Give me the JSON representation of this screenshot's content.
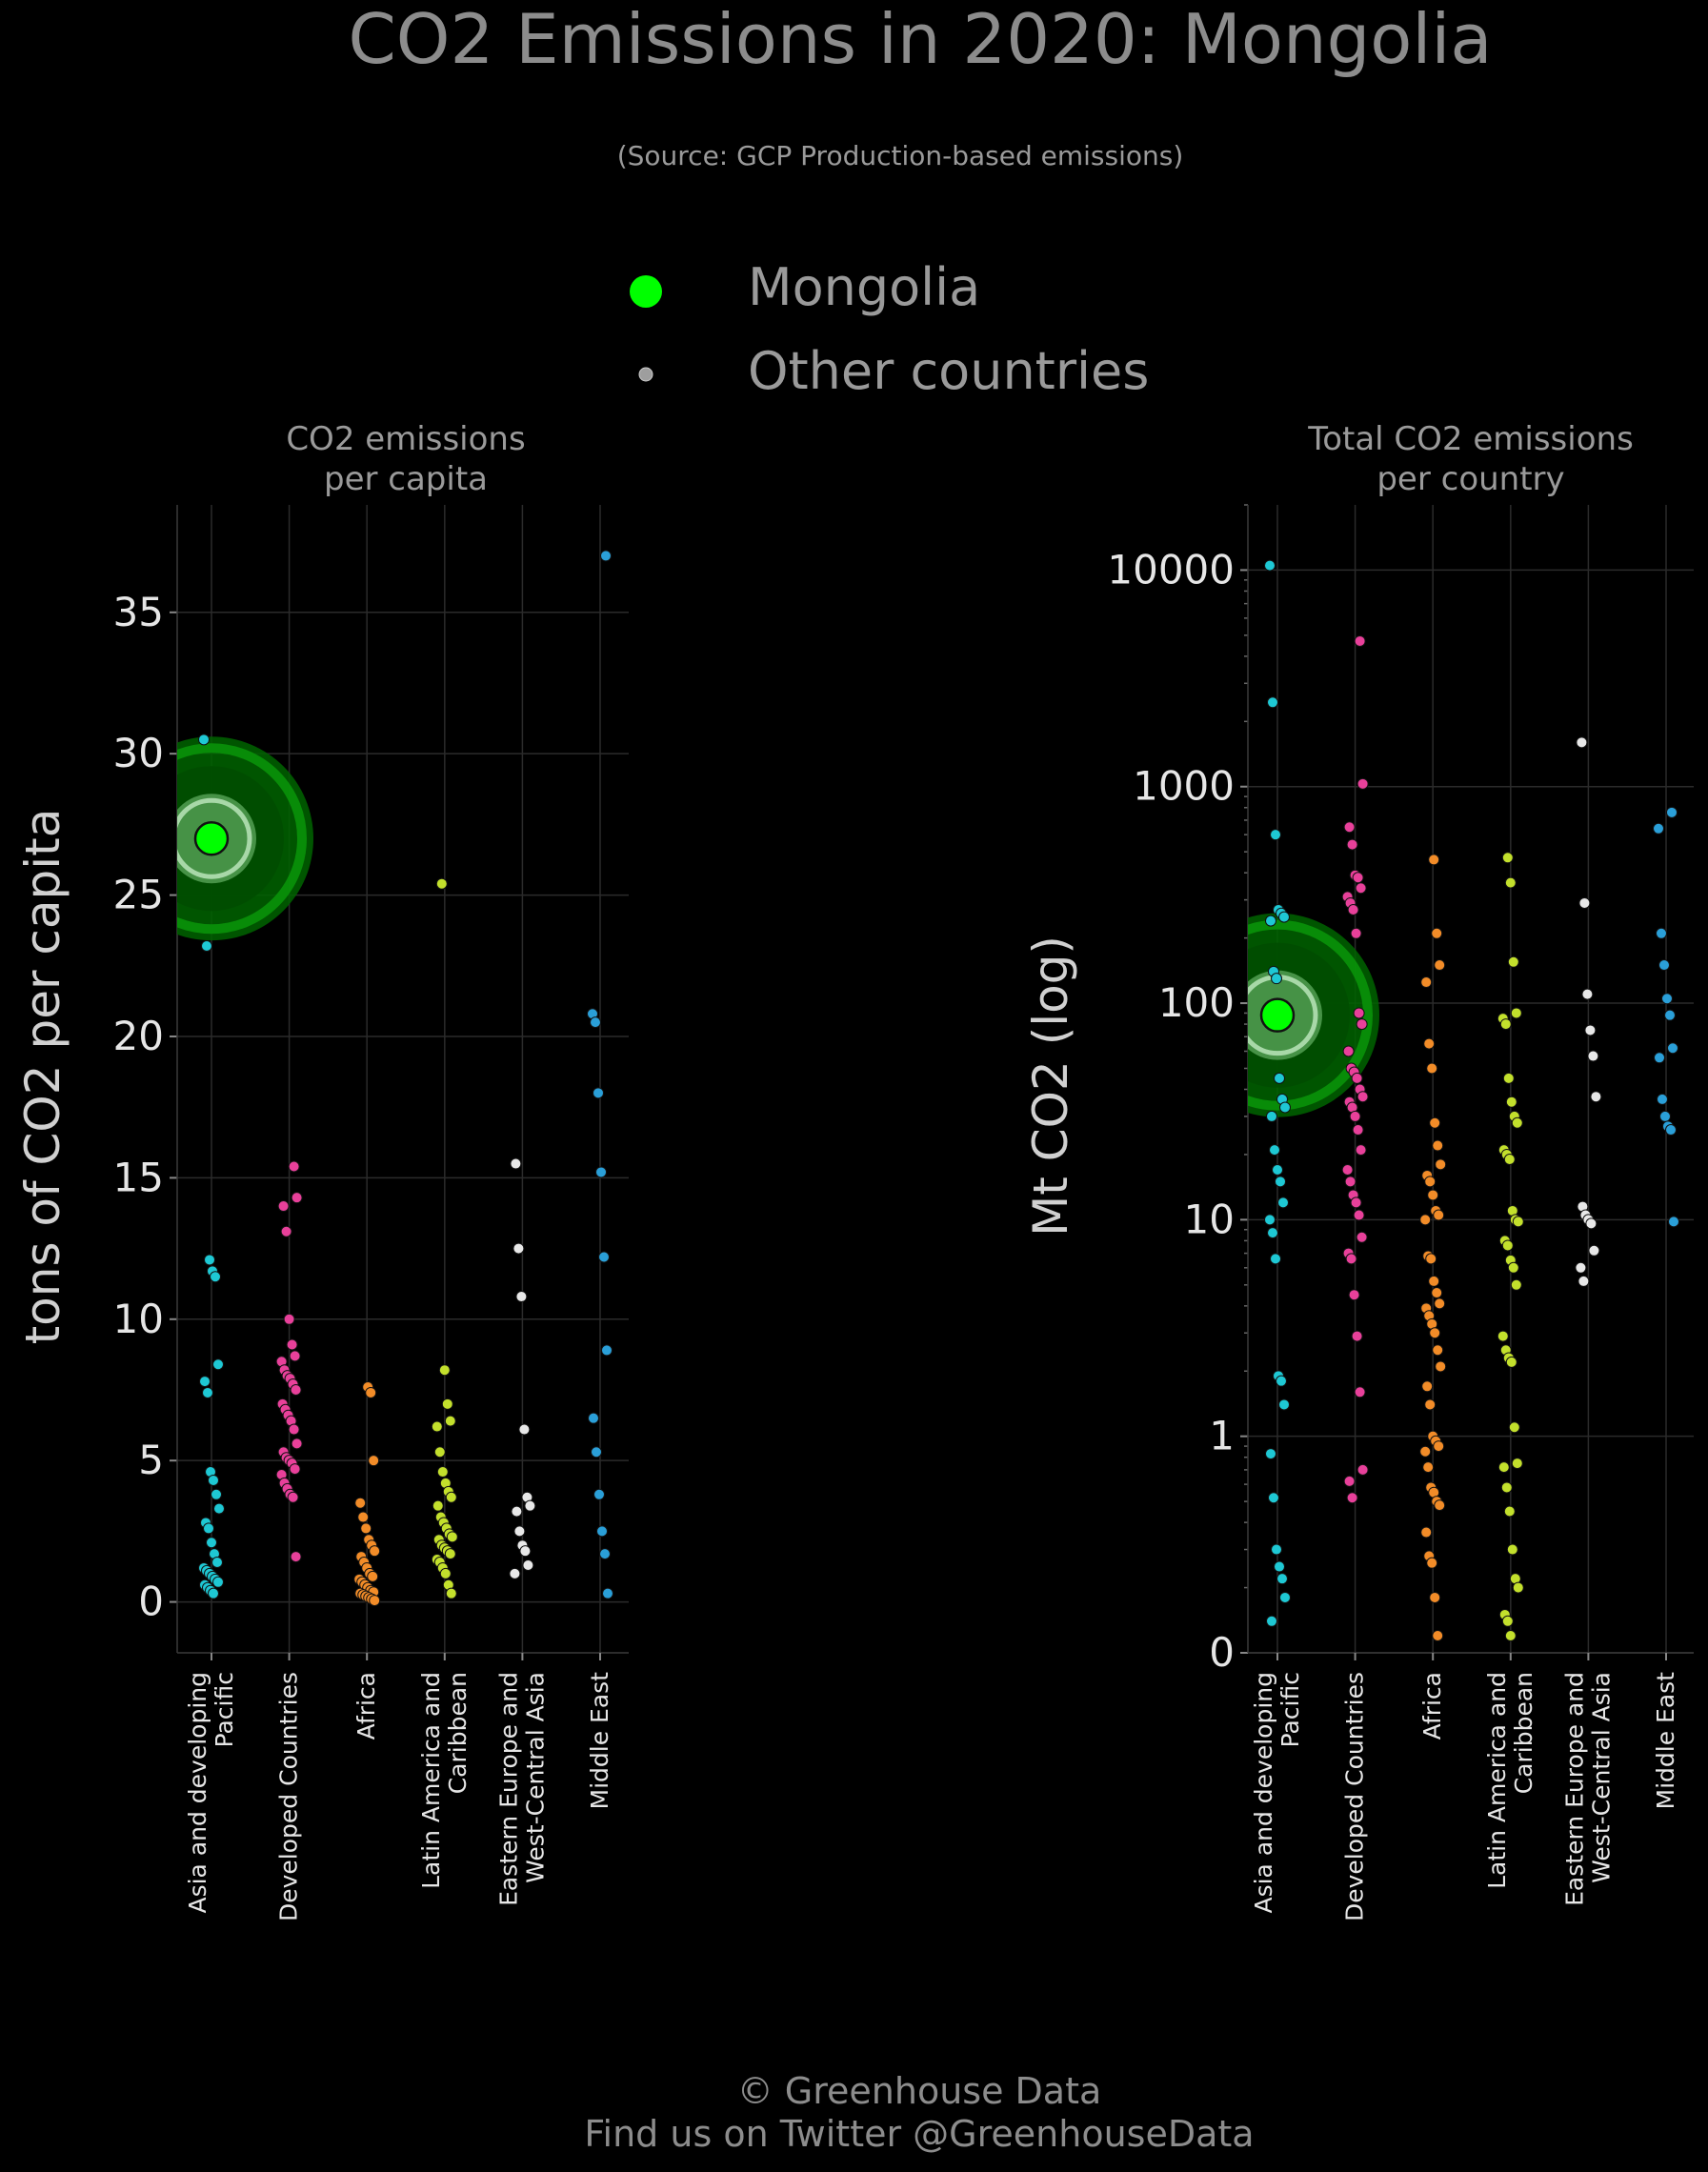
{
  "header": {
    "title": "CO2 Emissions in 2020: Mongolia",
    "subtitle": "(Source: GCP Production-based emissions)"
  },
  "legend": {
    "highlight_label": "Mongolia",
    "other_label": "Other countries",
    "highlight_color": "#00ff00",
    "other_color": "#9e9e9e"
  },
  "footer": {
    "line1": "© Greenhouse Data",
    "line2": "Find us on Twitter @GreenhouseData"
  },
  "colors": {
    "Asia and developing Pacific": "#1ec8d4",
    "Developed Countries": "#e8409a",
    "Africa": "#f28c28",
    "Latin America and Caribbean": "#c3e02c",
    "Eastern Europe and West-Central Asia": "#e8e8e8",
    "Middle East": "#2a9fd8"
  },
  "chart_data": [
    {
      "type": "scatter",
      "title": "CO2 emissions\nper capita",
      "ylabel": "tons of CO2 per capita",
      "scale": "linear",
      "ylim": [
        -1.8,
        38.8
      ],
      "yticks": [
        0,
        5,
        10,
        15,
        20,
        25,
        30,
        35
      ],
      "ytick_labels": [
        "0",
        "5",
        "10",
        "15",
        "20",
        "25",
        "30",
        "35"
      ],
      "grid": true,
      "categories": [
        "Asia and developing Pacific",
        "Developed Countries",
        "Africa",
        "Latin America and Caribbean",
        "Eastern Europe and West-Central Asia",
        "Middle East"
      ],
      "category_labels": [
        [
          "Asia and developing",
          "Pacific"
        ],
        [
          "Developed Countries"
        ],
        [
          "Africa"
        ],
        [
          "Latin America and",
          "Caribbean"
        ],
        [
          "Eastern Europe and",
          "West-Central Asia"
        ],
        [
          "Middle East"
        ]
      ],
      "highlight": {
        "name": "Mongolia",
        "category": "Asia and developing Pacific",
        "value": 27.0
      },
      "series": [
        {
          "category": "Asia and developing Pacific",
          "values": [
            30.5,
            23.2,
            12.1,
            11.7,
            11.5,
            8.4,
            7.8,
            7.4,
            4.6,
            4.3,
            3.8,
            3.3,
            2.8,
            2.6,
            2.1,
            1.7,
            1.4,
            1.2,
            1.1,
            1.0,
            0.9,
            0.8,
            0.7,
            0.6,
            0.5,
            0.4,
            0.3
          ]
        },
        {
          "category": "Developed Countries",
          "values": [
            15.4,
            14.3,
            14.0,
            13.1,
            10.0,
            9.1,
            8.7,
            8.5,
            8.2,
            8.0,
            7.9,
            7.7,
            7.5,
            7.0,
            6.8,
            6.6,
            6.4,
            6.1,
            5.6,
            5.3,
            5.1,
            5.0,
            4.9,
            4.7,
            4.5,
            4.2,
            4.0,
            3.8,
            3.7,
            1.6
          ]
        },
        {
          "category": "Africa",
          "values": [
            7.6,
            7.4,
            5.0,
            3.5,
            3.0,
            2.6,
            2.2,
            2.0,
            1.8,
            1.6,
            1.4,
            1.2,
            1.0,
            0.9,
            0.8,
            0.7,
            0.6,
            0.5,
            0.4,
            0.35,
            0.3,
            0.25,
            0.2,
            0.15,
            0.1,
            0.05
          ]
        },
        {
          "category": "Latin America and Caribbean",
          "values": [
            25.4,
            8.2,
            7.0,
            6.4,
            6.2,
            5.3,
            4.6,
            4.2,
            3.9,
            3.7,
            3.4,
            3.0,
            2.8,
            2.6,
            2.4,
            2.3,
            2.2,
            2.0,
            1.9,
            1.8,
            1.7,
            1.5,
            1.4,
            1.2,
            1.0,
            0.6,
            0.3
          ]
        },
        {
          "category": "Eastern Europe and West-Central Asia",
          "values": [
            15.5,
            12.5,
            10.8,
            6.1,
            3.7,
            3.4,
            3.2,
            2.5,
            2.0,
            1.8,
            1.3,
            1.0
          ]
        },
        {
          "category": "Middle East",
          "values": [
            37.0,
            20.8,
            20.5,
            18.0,
            15.2,
            12.2,
            8.9,
            6.5,
            5.3,
            3.8,
            2.5,
            1.7,
            0.3
          ]
        }
      ]
    },
    {
      "type": "scatter",
      "title": "Total CO2 emissions\nper country",
      "ylabel": "Mt CO2 (log)",
      "scale": "log",
      "ylim": [
        0.1,
        20000
      ],
      "yticks": [
        0.1,
        1,
        10,
        100,
        1000,
        10000
      ],
      "ytick_labels": [
        "0",
        "1",
        "10",
        "100",
        "1000",
        "10000"
      ],
      "grid": true,
      "categories": [
        "Asia and developing Pacific",
        "Developed Countries",
        "Africa",
        "Latin America and Caribbean",
        "Eastern Europe and West-Central Asia",
        "Middle East"
      ],
      "category_labels": [
        [
          "Asia and developing",
          "Pacific"
        ],
        [
          "Developed Countries"
        ],
        [
          "Africa"
        ],
        [
          "Latin America and",
          "Caribbean"
        ],
        [
          "Eastern Europe and",
          "West-Central Asia"
        ],
        [
          "Middle East"
        ]
      ],
      "highlight": {
        "name": "Mongolia",
        "category": "Asia and developing Pacific",
        "value": 88
      },
      "series": [
        {
          "category": "Asia and developing Pacific",
          "values": [
            10500,
            2450,
            600,
            270,
            260,
            250,
            240,
            140,
            130,
            45,
            36,
            33,
            30,
            21,
            17,
            15,
            12,
            10,
            8.7,
            6.6,
            1.9,
            1.8,
            1.4,
            0.83,
            0.52,
            0.3,
            0.25,
            0.22,
            0.18,
            0.14
          ]
        },
        {
          "category": "Developed Countries",
          "values": [
            4700,
            1030,
            650,
            540,
            390,
            380,
            340,
            310,
            290,
            270,
            210,
            90,
            80,
            60,
            50,
            48,
            45,
            40,
            37,
            35,
            33,
            30,
            26,
            21,
            17,
            15,
            13,
            12,
            10.5,
            8.3,
            7.0,
            6.6,
            4.5,
            2.9,
            1.6,
            0.7,
            0.62,
            0.52
          ]
        },
        {
          "category": "Africa",
          "values": [
            460,
            210,
            150,
            125,
            65,
            50,
            28,
            22,
            18,
            16,
            15,
            13,
            11,
            10.5,
            10,
            6.8,
            6.6,
            5.2,
            4.6,
            4.1,
            3.9,
            3.6,
            3.3,
            3.0,
            2.5,
            2.1,
            1.7,
            1.4,
            1.0,
            0.95,
            0.9,
            0.85,
            0.72,
            0.58,
            0.55,
            0.5,
            0.48,
            0.36,
            0.28,
            0.26,
            0.18,
            0.12
          ]
        },
        {
          "category": "Latin America and Caribbean",
          "values": [
            470,
            360,
            155,
            90,
            85,
            80,
            45,
            35,
            30,
            28,
            21,
            20,
            19,
            11,
            10,
            9.8,
            8.0,
            7.6,
            6.5,
            6.0,
            5.0,
            2.9,
            2.5,
            2.3,
            2.2,
            1.1,
            0.75,
            0.72,
            0.58,
            0.45,
            0.3,
            0.22,
            0.2,
            0.15,
            0.14,
            0.12
          ]
        },
        {
          "category": "Eastern Europe and West-Central Asia",
          "values": [
            1600,
            290,
            110,
            75,
            57,
            37,
            11.5,
            10.5,
            10,
            9.6,
            7.2,
            6.0,
            5.2
          ]
        },
        {
          "category": "Middle East",
          "values": [
            760,
            640,
            210,
            150,
            105,
            88,
            62,
            56,
            36,
            30,
            27,
            26,
            9.8
          ]
        }
      ]
    }
  ]
}
